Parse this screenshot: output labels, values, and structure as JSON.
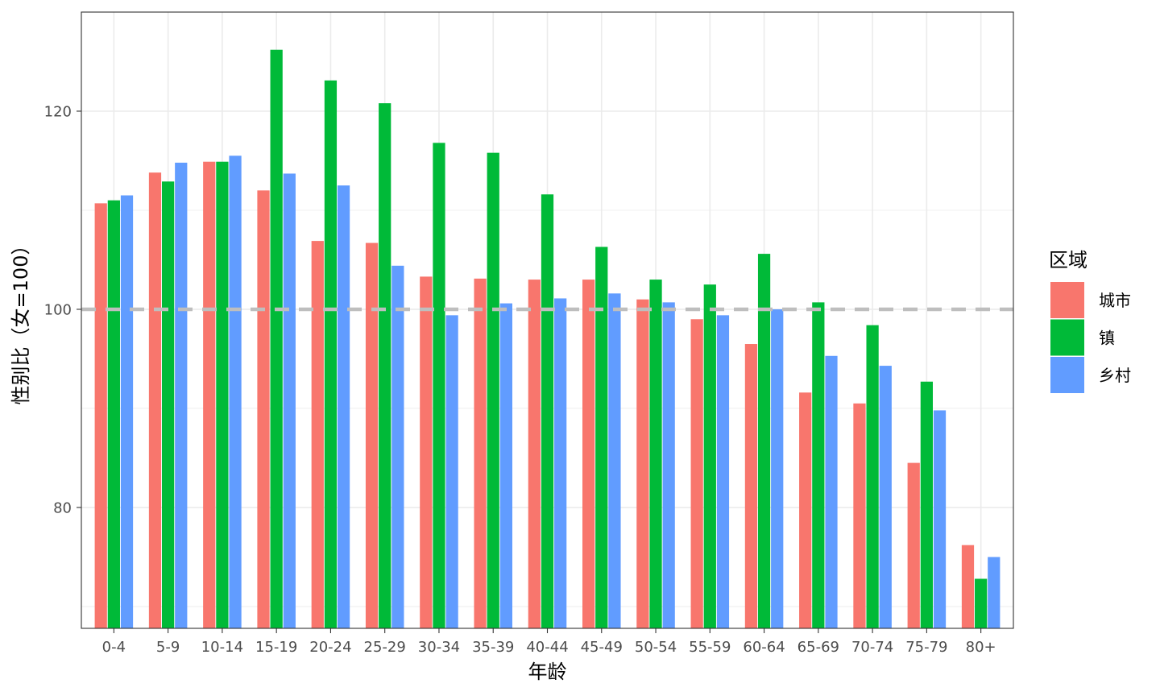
{
  "chart_data": {
    "type": "bar",
    "xlabel": "年龄",
    "ylabel": "性别比（女=100）",
    "ylim": [
      67.8,
      130
    ],
    "yticks": [
      80,
      100,
      120
    ],
    "grid": true,
    "legend": {
      "title": "区域",
      "position": "right"
    },
    "reference_line": {
      "y": 100,
      "style": "dashed",
      "color": "#bebebe"
    },
    "categories": [
      "0-4",
      "5-9",
      "10-14",
      "15-19",
      "20-24",
      "25-29",
      "30-34",
      "35-39",
      "40-44",
      "45-49",
      "50-54",
      "55-59",
      "60-64",
      "65-69",
      "70-74",
      "75-79",
      "80+"
    ],
    "series": [
      {
        "name": "城市",
        "color": "#F8766D",
        "values": [
          110.7,
          113.8,
          114.9,
          112.0,
          106.9,
          106.7,
          103.3,
          103.1,
          103.0,
          103.0,
          101.0,
          99.0,
          96.5,
          91.6,
          90.5,
          84.5,
          76.2
        ]
      },
      {
        "name": "镇",
        "color": "#00BA38",
        "values": [
          111.0,
          112.9,
          114.9,
          126.2,
          123.1,
          120.8,
          116.8,
          115.8,
          111.6,
          106.3,
          103.0,
          102.5,
          105.6,
          100.7,
          98.4,
          92.7,
          72.8
        ]
      },
      {
        "name": "乡村",
        "color": "#619CFF",
        "values": [
          111.5,
          114.8,
          115.5,
          113.7,
          112.5,
          104.4,
          99.4,
          100.6,
          101.1,
          101.6,
          100.7,
          99.4,
          100.0,
          95.3,
          94.3,
          89.8,
          75.0
        ]
      }
    ]
  }
}
